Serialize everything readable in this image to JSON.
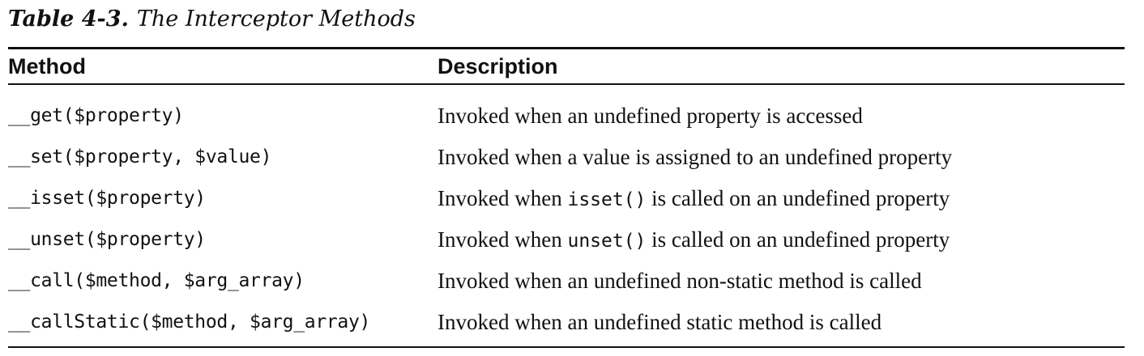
{
  "caption": {
    "label": "Table 4-3.",
    "title": "The Interceptor Methods"
  },
  "table": {
    "headers": [
      "Method",
      "Description"
    ],
    "rows": [
      {
        "method": "__get($property)",
        "desc_before": "Invoked when an undefined property is accessed",
        "desc_code": "",
        "desc_after": ""
      },
      {
        "method": "__set($property, $value)",
        "desc_before": "Invoked when a value is assigned to an undefined property",
        "desc_code": "",
        "desc_after": ""
      },
      {
        "method": "__isset($property)",
        "desc_before": "Invoked when ",
        "desc_code": "isset()",
        "desc_after": " is called on an undefined property"
      },
      {
        "method": "__unset($property)",
        "desc_before": "Invoked when ",
        "desc_code": "unset()",
        "desc_after": " is called on an undefined property"
      },
      {
        "method": "__call($method, $arg_array)",
        "desc_before": "Invoked when an undefined non-static method is called",
        "desc_code": "",
        "desc_after": ""
      },
      {
        "method": "__callStatic($method, $arg_array)",
        "desc_before": "Invoked when an undefined static method is called",
        "desc_code": "",
        "desc_after": ""
      }
    ]
  }
}
